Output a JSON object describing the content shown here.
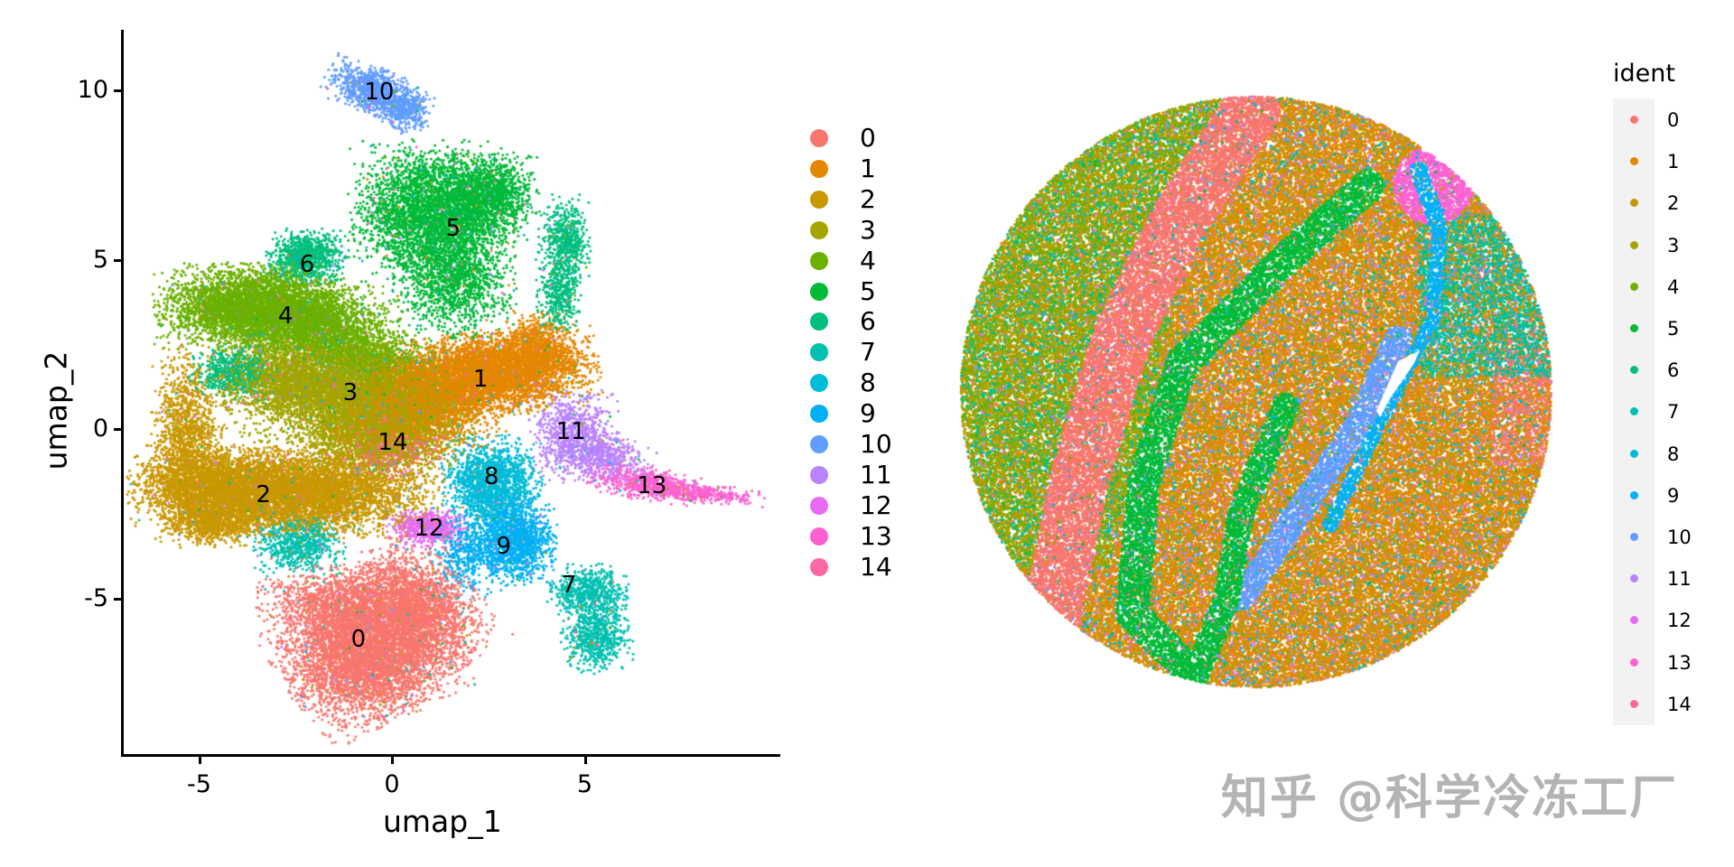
{
  "chart_data": [
    {
      "type": "scatter",
      "title": "",
      "xlabel": "umap_1",
      "ylabel": "umap_2",
      "xlim": [
        -6.9,
        10.0
      ],
      "ylim": [
        -9.3,
        12.1
      ],
      "xticks": [
        "-5",
        "0",
        "5"
      ],
      "xtick_values": [
        -5,
        0,
        5
      ],
      "yticks": [
        "-5",
        "0",
        "5",
        "10"
      ],
      "ytick_values": [
        -5,
        0,
        5,
        10
      ],
      "grid": false,
      "legend_position": "right",
      "legend_title": "",
      "cluster_labels": [
        {
          "id": "0",
          "x": -0.87,
          "y": -6.21
        },
        {
          "id": "1",
          "x": 2.3,
          "y": 1.47
        },
        {
          "id": "2",
          "x": -3.33,
          "y": -1.95
        },
        {
          "id": "3",
          "x": -1.08,
          "y": 1.07
        },
        {
          "id": "4",
          "x": -2.76,
          "y": 3.33
        },
        {
          "id": "5",
          "x": 1.59,
          "y": 5.92
        },
        {
          "id": "6",
          "x": -2.2,
          "y": 4.85
        },
        {
          "id": "7",
          "x": 4.59,
          "y": -4.61
        },
        {
          "id": "8",
          "x": 2.58,
          "y": -1.41
        },
        {
          "id": "9",
          "x": 2.9,
          "y": -3.47
        },
        {
          "id": "10",
          "x": -0.33,
          "y": 9.95
        },
        {
          "id": "11",
          "x": 4.64,
          "y": -0.08
        },
        {
          "id": "12",
          "x": 0.96,
          "y": -2.93
        },
        {
          "id": "13",
          "x": 6.74,
          "y": -1.68
        },
        {
          "id": "14",
          "x": 0.02,
          "y": -0.4
        }
      ]
    },
    {
      "type": "scatter",
      "title": "",
      "xlabel": "",
      "ylabel": "",
      "grid": false,
      "axes_visible": false,
      "shape": "circle",
      "legend_position": "right",
      "legend_title": "ident",
      "description": "Spatial plot of spots colored by cluster identity within a circular tissue section"
    }
  ],
  "legend": {
    "items": [
      {
        "label": "0",
        "color": "#F8766D"
      },
      {
        "label": "1",
        "color": "#E58700"
      },
      {
        "label": "2",
        "color": "#C99800"
      },
      {
        "label": "3",
        "color": "#A3A500"
      },
      {
        "label": "4",
        "color": "#6BB100"
      },
      {
        "label": "5",
        "color": "#00BA38"
      },
      {
        "label": "6",
        "color": "#00BF7D"
      },
      {
        "label": "7",
        "color": "#00C0AF"
      },
      {
        "label": "8",
        "color": "#00BCD8"
      },
      {
        "label": "9",
        "color": "#00B0F6"
      },
      {
        "label": "10",
        "color": "#619CFF"
      },
      {
        "label": "11",
        "color": "#B983FF"
      },
      {
        "label": "12",
        "color": "#E76BF3"
      },
      {
        "label": "13",
        "color": "#FD61D1"
      },
      {
        "label": "14",
        "color": "#FF67A4"
      }
    ]
  },
  "umap_panel": {
    "xlabel": "umap_1",
    "ylabel": "umap_2",
    "xticks": [
      {
        "label": "-5",
        "v": -5
      },
      {
        "label": "0",
        "v": 0
      },
      {
        "label": "5",
        "v": 5
      }
    ],
    "yticks": [
      {
        "label": "10",
        "v": 10
      },
      {
        "label": "5",
        "v": 5
      },
      {
        "label": "0",
        "v": 0
      },
      {
        "label": "-5",
        "v": -5
      }
    ]
  },
  "spatial_panel": {
    "legend_title": "ident"
  },
  "watermark": "知乎 @科学冷冻工厂"
}
